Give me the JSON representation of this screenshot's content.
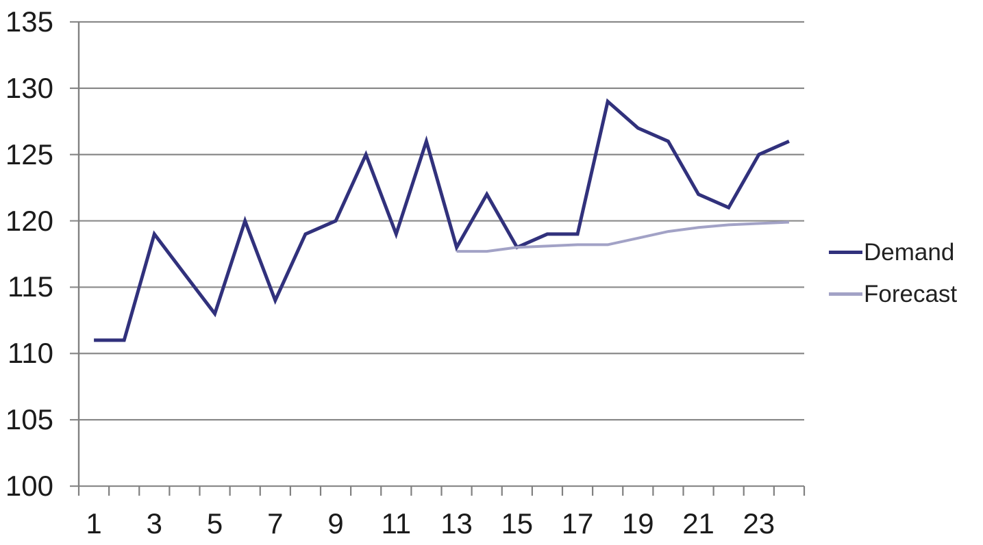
{
  "chart_data": {
    "type": "line",
    "title": "",
    "xlabel": "",
    "ylabel": "",
    "x": [
      1,
      2,
      3,
      4,
      5,
      6,
      7,
      8,
      9,
      10,
      11,
      12,
      13,
      14,
      15,
      16,
      17,
      18,
      19,
      20,
      21,
      22,
      23,
      24
    ],
    "xticks_labeled": [
      1,
      3,
      5,
      7,
      9,
      11,
      13,
      15,
      17,
      19,
      21,
      23
    ],
    "ylim": [
      100,
      135
    ],
    "ytick_step": 5,
    "yticks": [
      100,
      105,
      110,
      115,
      120,
      125,
      130,
      135
    ],
    "grid": "horizontal",
    "legend_position": "right-middle",
    "series": [
      {
        "name": "Demand",
        "color": "#31317c",
        "line_width": 5,
        "values": [
          111,
          111,
          119,
          116,
          113,
          120,
          114,
          119,
          120,
          125,
          119,
          126,
          118,
          122,
          118,
          119,
          119,
          129,
          127,
          126,
          122,
          121,
          125,
          126
        ]
      },
      {
        "name": "Forecast",
        "color": "#a2a2c6",
        "line_width": 4,
        "values": [
          null,
          null,
          null,
          null,
          null,
          null,
          null,
          null,
          null,
          null,
          null,
          null,
          117.7,
          117.7,
          118.0,
          118.1,
          118.2,
          118.2,
          118.7,
          119.2,
          119.5,
          119.7,
          119.8,
          119.9
        ]
      }
    ]
  },
  "colors": {
    "background": "#ffffff",
    "gridline": "#8a8a8a",
    "axis": "#808080",
    "tick_text": "#1b1b1b"
  }
}
